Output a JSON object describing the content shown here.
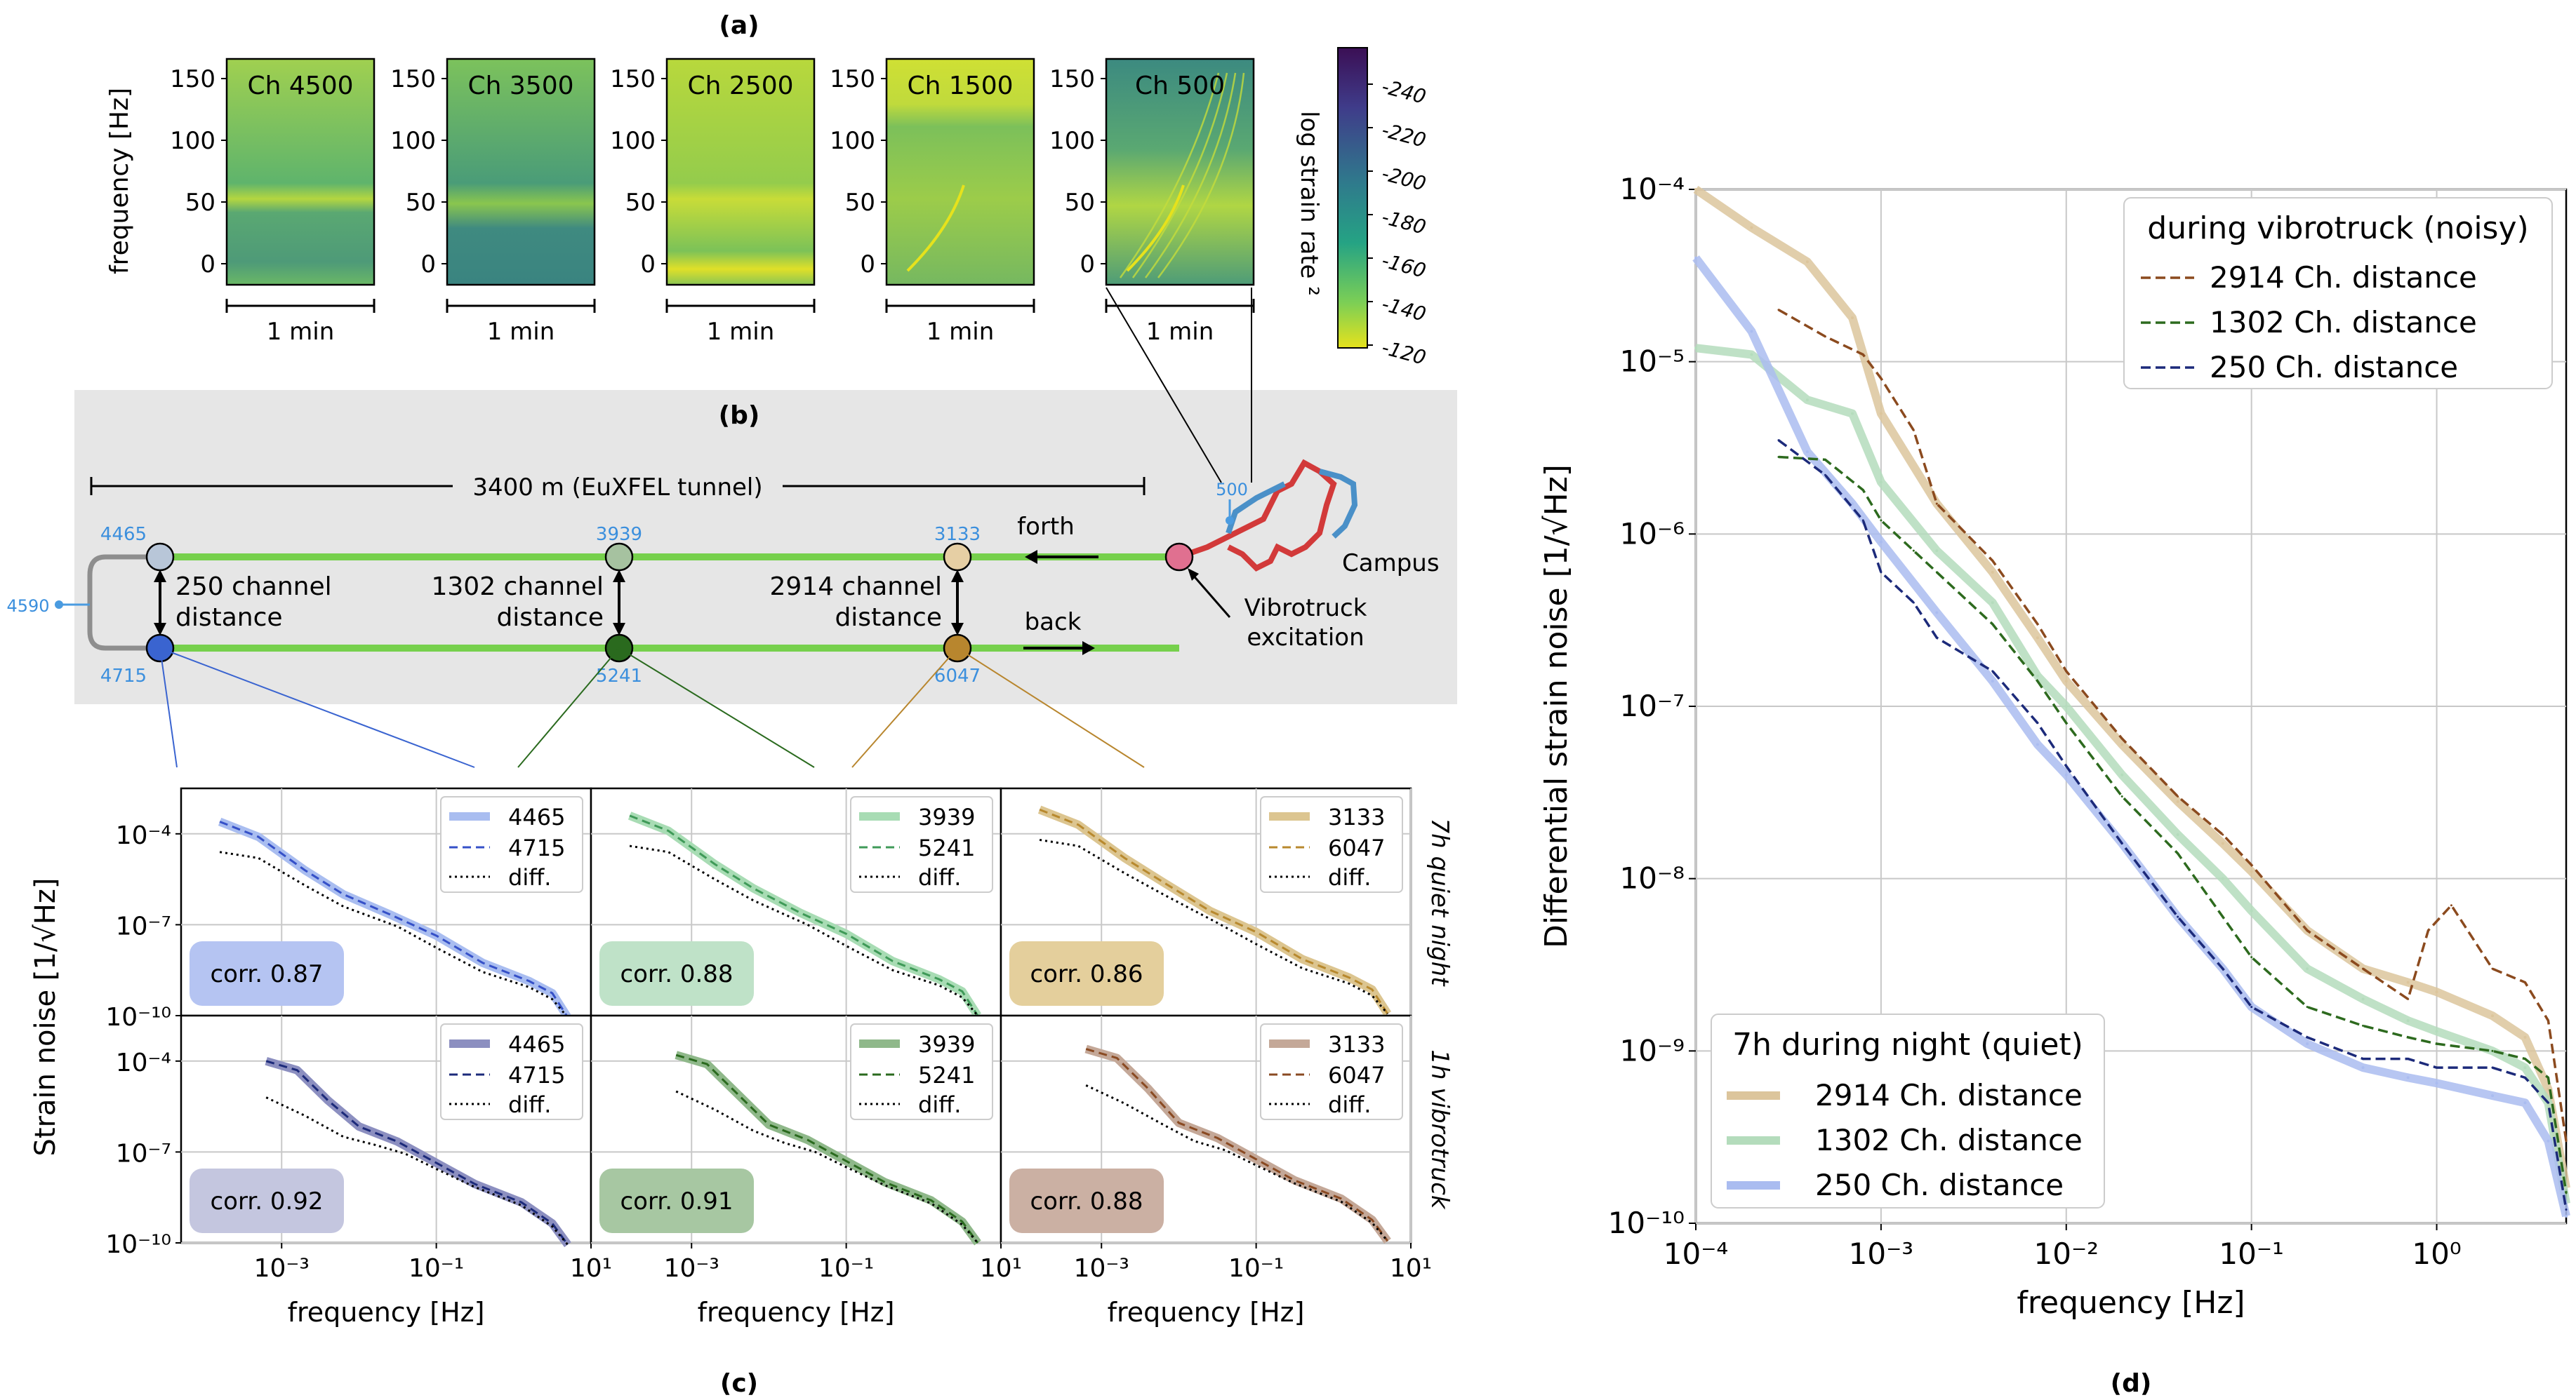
{
  "panels": {
    "a": "(a)",
    "b": "(b)",
    "c": "(c)",
    "d": "(d)"
  },
  "spectrograms": {
    "ylabel": "frequency [Hz]",
    "yticks": [
      "150",
      "100",
      "50",
      "0"
    ],
    "duration": "1 min",
    "channels": [
      "Ch 4500",
      "Ch 3500",
      "Ch 2500",
      "Ch 1500",
      "Ch 500"
    ],
    "colorbar": {
      "label": "log strain rate ²",
      "ticks": [
        "-240",
        "-220",
        "-200",
        "-180",
        "-160",
        "-140",
        "-120"
      ]
    }
  },
  "diagram": {
    "tunnel_label": "3400 m (EuXFEL tunnel)",
    "forth": "forth",
    "back": "back",
    "campus": "Campus",
    "vibrotruck": [
      "Vibrotruck",
      "excitation"
    ],
    "turn_channel": "4590",
    "source_channel": "500",
    "pairs": [
      {
        "top": "4465",
        "bottom": "4715",
        "label": [
          "250 channel",
          "distance"
        ],
        "top_color": "#b8c6d8",
        "bottom_color": "#3a64d0"
      },
      {
        "top": "3939",
        "bottom": "5241",
        "label": [
          "1302 channel",
          "distance"
        ],
        "top_color": "#a6c2a0",
        "bottom_color": "#2a6a1e"
      },
      {
        "top": "3133",
        "bottom": "6047",
        "label": [
          "2914 channel",
          "distance"
        ],
        "top_color": "#e6cfa4",
        "bottom_color": "#b8862e"
      }
    ],
    "source_color": "#e07090"
  },
  "small_grid": {
    "ylabel": "Strain noise [1/√Hz]",
    "xlabel": "frequency [Hz]",
    "xticks": [
      "10⁻³",
      "10⁻¹",
      "10¹"
    ],
    "yticks": [
      "10⁻⁴",
      "10⁻⁷",
      "10⁻¹⁰"
    ],
    "row_labels": [
      "7h quiet night",
      "1h vibrotruck"
    ],
    "diff_label": "diff.",
    "cells": [
      {
        "legend": [
          "4465",
          "4715"
        ],
        "corr": "corr. 0.87",
        "line": "#a9bdf0",
        "dash": "#3550c8",
        "box": "#b5c4f2"
      },
      {
        "legend": [
          "3939",
          "5241"
        ],
        "corr": "corr. 0.88",
        "line": "#a8dcb4",
        "dash": "#3f9a58",
        "box": "#bfe2c8"
      },
      {
        "legend": [
          "3133",
          "6047"
        ],
        "corr": "corr. 0.86",
        "line": "#dcc590",
        "dash": "#b8892e",
        "box": "#e4cf9c"
      },
      {
        "legend": [
          "4465",
          "4715"
        ],
        "corr": "corr. 0.92",
        "line": "#8c8fc0",
        "dash": "#1c2a7a",
        "box": "#c4c6df"
      },
      {
        "legend": [
          "3939",
          "5241"
        ],
        "corr": "corr. 0.91",
        "line": "#8fb88a",
        "dash": "#2a6a1e",
        "box": "#a7c7a2"
      },
      {
        "legend": [
          "3133",
          "6047"
        ],
        "corr": "corr. 0.88",
        "line": "#c4a898",
        "dash": "#8a4a22",
        "box": "#cbb0a3"
      }
    ]
  },
  "chart_data": {
    "type": "line",
    "title": "",
    "xlabel": "frequency [Hz]",
    "ylabel": "Differential strain noise [1/√Hz]",
    "xscale": "log",
    "yscale": "log",
    "xlim": [
      0.0001,
      5
    ],
    "ylim": [
      1e-10,
      0.0001
    ],
    "xtick_labels": [
      "10⁻⁴",
      "10⁻³",
      "10⁻²",
      "10⁻¹",
      "10⁰"
    ],
    "ytick_labels": [
      "10⁻⁴",
      "10⁻⁵",
      "10⁻⁶",
      "10⁻⁷",
      "10⁻⁸",
      "10⁻⁹",
      "10⁻¹⁰"
    ],
    "legend_noisy_title": "during vibrotruck (noisy)",
    "legend_quiet_title": "7h during night (quiet)",
    "series": [
      {
        "name": "2914 Ch. distance",
        "group": "quiet",
        "color": "#dcc59c",
        "style": "solid",
        "x": [
          0.0001,
          0.0002,
          0.0004,
          0.0007,
          0.001,
          0.002,
          0.004,
          0.007,
          0.01,
          0.02,
          0.04,
          0.07,
          0.1,
          0.2,
          0.4,
          0.7,
          1,
          2,
          3,
          4,
          5
        ],
        "y": [
          0.0001,
          6e-05,
          3.8e-05,
          1.8e-05,
          5e-06,
          1.5e-06,
          6e-07,
          2.5e-07,
          1.4e-07,
          6e-08,
          2.8e-08,
          1.6e-08,
          1.1e-08,
          5e-09,
          3e-09,
          2.5e-09,
          2.2e-09,
          1.6e-09,
          1.2e-09,
          6e-10,
          1.6e-10
        ]
      },
      {
        "name": "1302 Ch. distance",
        "group": "quiet",
        "color": "#b4dcbc",
        "style": "solid",
        "x": [
          0.0001,
          0.0002,
          0.0004,
          0.0007,
          0.001,
          0.002,
          0.004,
          0.007,
          0.01,
          0.02,
          0.04,
          0.07,
          0.1,
          0.2,
          0.4,
          0.7,
          1,
          2,
          3,
          4,
          5
        ],
        "y": [
          1.2e-05,
          1.1e-05,
          6e-06,
          5e-06,
          2e-06,
          8e-07,
          4e-07,
          1.5e-07,
          1e-07,
          4e-08,
          1.8e-08,
          1e-08,
          6.5e-09,
          3e-09,
          2e-09,
          1.5e-09,
          1.3e-09,
          1e-09,
          8e-10,
          5e-10,
          1.3e-10
        ]
      },
      {
        "name": "250 Ch. distance",
        "group": "quiet",
        "color": "#aabcf0",
        "style": "solid",
        "x": [
          0.0001,
          0.0002,
          0.0004,
          0.0007,
          0.001,
          0.002,
          0.004,
          0.007,
          0.01,
          0.02,
          0.04,
          0.07,
          0.1,
          0.2,
          0.4,
          0.7,
          1,
          2,
          3,
          4,
          5
        ],
        "y": [
          4e-05,
          1.5e-05,
          3e-06,
          1.5e-06,
          9e-07,
          3.5e-07,
          1.4e-07,
          6e-08,
          4e-08,
          1.6e-08,
          6e-09,
          3e-09,
          1.8e-09,
          1.1e-09,
          8e-10,
          7e-10,
          6.5e-10,
          5.5e-10,
          5e-10,
          3e-10,
          1.1e-10
        ]
      },
      {
        "name": "2914 Ch. distance",
        "group": "noisy",
        "color": "#8b4a1e",
        "style": "dashed",
        "x": [
          0.00028,
          0.0005,
          0.0008,
          0.001,
          0.0015,
          0.002,
          0.004,
          0.007,
          0.01,
          0.02,
          0.04,
          0.07,
          0.1,
          0.2,
          0.4,
          0.7,
          0.9,
          1.2,
          2,
          3,
          4,
          5
        ],
        "y": [
          2e-05,
          1.4e-05,
          1.1e-05,
          8e-06,
          4e-06,
          1.5e-06,
          7e-07,
          3e-07,
          1.6e-07,
          6.5e-08,
          3e-08,
          1.8e-08,
          1.2e-08,
          5e-09,
          3e-09,
          2e-09,
          5e-09,
          7e-09,
          3e-09,
          2.5e-09,
          1.5e-09,
          3e-10
        ]
      },
      {
        "name": "1302 Ch. distance",
        "group": "noisy",
        "color": "#2d6a1e",
        "style": "dashed",
        "x": [
          0.00028,
          0.0005,
          0.0008,
          0.001,
          0.0015,
          0.002,
          0.004,
          0.007,
          0.01,
          0.02,
          0.04,
          0.07,
          0.1,
          0.2,
          0.4,
          0.7,
          1,
          2,
          3,
          4,
          5
        ],
        "y": [
          2.8e-06,
          2.7e-06,
          1.8e-06,
          1.2e-06,
          8e-07,
          6e-07,
          3e-07,
          1.4e-07,
          8e-08,
          3e-08,
          1.4e-08,
          6e-09,
          3.5e-09,
          1.8e-09,
          1.4e-09,
          1.2e-09,
          1.1e-09,
          1e-09,
          9e-10,
          7e-10,
          1.5e-10
        ]
      },
      {
        "name": "250 Ch. distance",
        "group": "noisy",
        "color": "#1c2a7a",
        "style": "dashed",
        "x": [
          0.00028,
          0.0005,
          0.0008,
          0.001,
          0.0015,
          0.002,
          0.004,
          0.007,
          0.01,
          0.02,
          0.04,
          0.07,
          0.1,
          0.2,
          0.4,
          0.7,
          1,
          2,
          3,
          4,
          5
        ],
        "y": [
          3.5e-06,
          2.2e-06,
          1.2e-06,
          6e-07,
          4e-07,
          2.5e-07,
          1.6e-07,
          8e-08,
          4.5e-08,
          1.6e-08,
          6e-09,
          3e-09,
          1.8e-09,
          1.2e-09,
          9e-10,
          9e-10,
          8e-10,
          8e-10,
          7e-10,
          5e-10,
          1.2e-10
        ]
      }
    ]
  }
}
